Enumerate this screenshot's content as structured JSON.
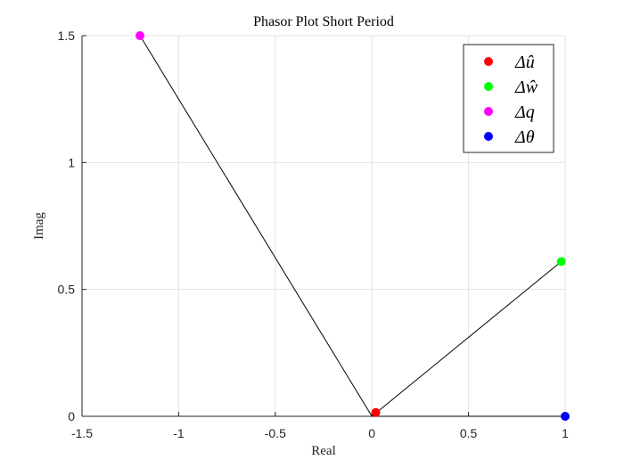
{
  "chart_data": {
    "type": "scatter",
    "title": "Phasor Plot Short Period",
    "xlabel": "Real",
    "ylabel": "Imag",
    "xlim": [
      -1.5,
      1
    ],
    "ylim": [
      0,
      1.5
    ],
    "xticks": [
      -1.5,
      -1,
      -0.5,
      0,
      0.5,
      1
    ],
    "xtick_labels": [
      "-1.5",
      "-1",
      "-0.5",
      "0",
      "0.5",
      "1"
    ],
    "yticks": [
      0,
      0.5,
      1,
      1.5
    ],
    "ytick_labels": [
      "0",
      "0.5",
      "1",
      "1.5"
    ],
    "grid": true,
    "legend_position": "top-right",
    "series": [
      {
        "name": "Δû",
        "x": 0.02,
        "y": 0.015,
        "color": "#ff0000"
      },
      {
        "name": "Δŵ",
        "x": 0.98,
        "y": 0.61,
        "color": "#00ff00"
      },
      {
        "name": "Δq",
        "x": -1.2,
        "y": 1.5,
        "color": "#ff00ff"
      },
      {
        "name": "Δθ",
        "x": 1.0,
        "y": 0.0,
        "color": "#0000ff"
      }
    ],
    "line_color": "#000000"
  }
}
